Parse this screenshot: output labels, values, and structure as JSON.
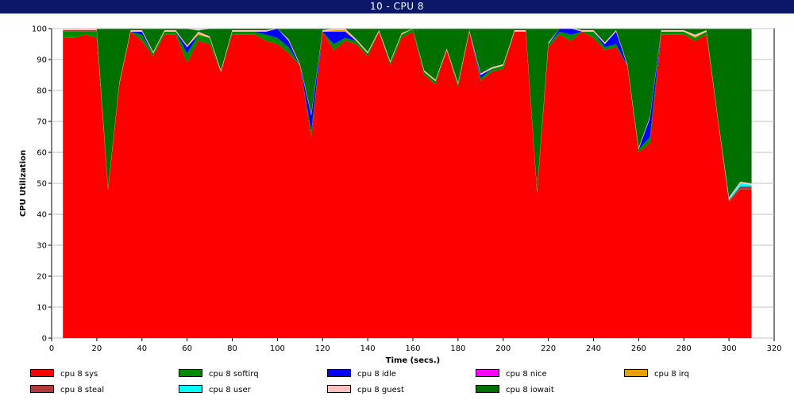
{
  "window": {
    "title": "10 - CPU 8"
  },
  "chart_data": {
    "type": "area",
    "stacked": true,
    "title": "10 - CPU 8",
    "xlabel": "Time (secs.)",
    "ylabel": "CPU Utilization",
    "xlim": [
      0,
      320
    ],
    "ylim": [
      0,
      100
    ],
    "xticks": [
      0,
      20,
      40,
      60,
      80,
      100,
      120,
      140,
      160,
      180,
      200,
      220,
      240,
      260,
      280,
      300,
      320
    ],
    "yticks": [
      0,
      10,
      20,
      30,
      40,
      50,
      60,
      70,
      80,
      90,
      100
    ],
    "grid": true,
    "legend_position": "bottom",
    "x": [
      5,
      10,
      15,
      20,
      25,
      30,
      35,
      40,
      45,
      50,
      55,
      60,
      65,
      70,
      75,
      80,
      85,
      90,
      95,
      100,
      105,
      110,
      115,
      120,
      125,
      130,
      135,
      140,
      145,
      150,
      155,
      160,
      165,
      170,
      175,
      180,
      185,
      190,
      195,
      200,
      205,
      210,
      215,
      220,
      225,
      230,
      235,
      240,
      245,
      250,
      255,
      260,
      265,
      270,
      275,
      280,
      285,
      290,
      295,
      300,
      305,
      310
    ],
    "series": [
      {
        "name": "cpu 8 sys",
        "color": "#ff0000",
        "values": [
          97,
          97,
          98,
          97,
          48,
          82,
          99,
          96,
          91,
          98,
          98,
          89,
          96,
          95,
          86,
          98,
          98,
          98,
          96,
          95,
          92,
          88,
          65,
          99,
          93,
          96,
          95,
          91,
          99,
          88,
          97,
          99,
          85,
          82,
          93,
          81,
          99,
          83,
          86,
          87,
          99,
          99,
          47,
          94,
          98,
          96,
          99,
          97,
          93,
          94,
          88,
          60,
          63,
          98,
          98,
          98,
          96,
          98,
          71,
          44,
          48,
          48
        ]
      },
      {
        "name": "cpu 8 softirq",
        "color": "#008b00",
        "values": [
          2,
          2,
          1,
          2,
          0,
          0,
          0,
          2,
          1,
          1,
          1,
          3,
          2,
          2,
          0,
          1,
          1,
          1,
          2,
          2,
          2,
          0,
          2,
          0,
          2,
          1,
          1,
          1,
          0,
          1,
          1,
          1,
          1,
          1,
          0,
          1,
          0,
          1,
          1,
          1,
          0,
          0,
          0,
          1,
          1,
          2,
          0,
          2,
          1,
          1,
          0,
          1,
          2,
          1,
          1,
          1,
          1,
          1,
          0,
          0,
          0,
          0
        ]
      },
      {
        "name": "cpu 8 idle",
        "color": "#0000ff",
        "values": [
          0,
          0,
          0,
          0,
          0,
          0,
          0,
          1,
          0,
          0,
          0,
          2,
          0,
          0,
          0,
          0,
          0,
          0,
          1,
          3,
          2,
          0,
          5,
          0,
          4,
          2,
          0,
          0,
          0,
          0,
          0,
          0,
          0,
          0,
          0,
          0,
          0,
          1,
          0,
          0,
          0,
          0,
          0,
          0,
          1,
          2,
          0,
          0,
          1,
          4,
          0,
          0,
          6,
          0,
          0,
          0,
          0,
          0,
          0,
          0,
          0,
          0
        ]
      },
      {
        "name": "cpu 8 nice",
        "color": "#ff00ff",
        "values": [
          0,
          0,
          0,
          0,
          0,
          0,
          0,
          0,
          0,
          0,
          0,
          0,
          0,
          0,
          0,
          0,
          0,
          0,
          0,
          0,
          0,
          0,
          0,
          0,
          0,
          0,
          0,
          0,
          0,
          0,
          0,
          0,
          0,
          0,
          0,
          0,
          0,
          0,
          0,
          0,
          0,
          0,
          0,
          0,
          0,
          0,
          0,
          0,
          0,
          0,
          0,
          0,
          0,
          0,
          0,
          0,
          0,
          0,
          0,
          0,
          0,
          0
        ]
      },
      {
        "name": "cpu 8 irq",
        "color": "#e8a000",
        "values": [
          0,
          0,
          0,
          0,
          0,
          0,
          0,
          0,
          0,
          0,
          0,
          0,
          0.5,
          0,
          0,
          0,
          0,
          0,
          0,
          0,
          0,
          0,
          0,
          0,
          0.5,
          0.5,
          0,
          0,
          0,
          0,
          0,
          0,
          0,
          0,
          0,
          0,
          0,
          0,
          0,
          0,
          0,
          0,
          0,
          0,
          0,
          0,
          0,
          0,
          0,
          0,
          0,
          0,
          0,
          0,
          0,
          0,
          0.5,
          0,
          0,
          0,
          0,
          0
        ]
      },
      {
        "name": "cpu 8 steal",
        "color": "#b03a3a",
        "values": [
          0.5,
          0.5,
          0.5,
          0.5,
          0,
          0,
          0,
          0,
          0,
          0,
          0,
          0,
          0,
          0,
          0,
          0,
          0,
          0,
          0,
          0,
          0,
          0,
          0,
          0,
          0,
          0,
          0,
          0,
          0,
          0,
          0,
          0,
          0,
          0,
          0,
          0,
          0,
          0,
          0,
          0,
          0,
          0,
          0,
          0,
          0,
          0,
          0,
          0,
          0,
          0,
          0,
          0,
          0,
          0,
          0,
          0,
          0,
          0,
          0,
          0.5,
          1,
          1
        ]
      },
      {
        "name": "cpu 8 user",
        "color": "#00ffff",
        "values": [
          0,
          0,
          0,
          0,
          0,
          0,
          0,
          0,
          0,
          0,
          0,
          0,
          0,
          0,
          0,
          0,
          0,
          0,
          0,
          0,
          0,
          0,
          0,
          0,
          0,
          0,
          0,
          0,
          0,
          0,
          0,
          0,
          0,
          0,
          0,
          0,
          0,
          0,
          0,
          0,
          0,
          0,
          0,
          0,
          0,
          0,
          0,
          0,
          0,
          0,
          0,
          0,
          0,
          0,
          0,
          0,
          0,
          0,
          0,
          0.5,
          1,
          0.5
        ]
      },
      {
        "name": "cpu 8 guest",
        "color": "#ffc0c0",
        "values": [
          0.5,
          0.5,
          0.5,
          0.5,
          0.5,
          0.5,
          0.5,
          0.5,
          0.5,
          0.5,
          0.5,
          0.5,
          0.5,
          0.5,
          0.5,
          0.5,
          0.5,
          0.5,
          0.5,
          0.5,
          0.5,
          0.5,
          0.5,
          0.5,
          0.5,
          0.5,
          0.5,
          0.5,
          0.5,
          0.5,
          0.5,
          0.5,
          0.5,
          0.5,
          0.5,
          0.5,
          0.5,
          0.5,
          0.5,
          0.5,
          0.5,
          0.5,
          0.5,
          0.5,
          0.5,
          0.5,
          0.5,
          0.5,
          0.5,
          0.5,
          0.5,
          0.5,
          0.5,
          0.5,
          0.5,
          0.5,
          0.5,
          0.5,
          0.5,
          0.5,
          0.5,
          0.5
        ]
      },
      {
        "name": "cpu 8 iowait",
        "color": "#007000",
        "values": [
          0,
          0,
          0,
          0,
          51.5,
          17.5,
          0.5,
          0.5,
          7.5,
          0.5,
          0.5,
          5.5,
          0.5,
          2.5,
          13.5,
          0.5,
          0.5,
          0.5,
          0.5,
          0,
          3.5,
          11.5,
          27.5,
          0.5,
          0,
          0,
          3.5,
          7.5,
          0.5,
          10.5,
          1.5,
          0,
          13.5,
          16.5,
          6.5,
          17.5,
          0.5,
          14.5,
          12.5,
          11.5,
          0.5,
          0.5,
          52.5,
          4.5,
          0,
          0,
          0.5,
          0.5,
          4.5,
          0.5,
          11.5,
          38.5,
          28.5,
          0.5,
          0.5,
          0.5,
          2,
          0.5,
          28.5,
          54.5,
          49.5,
          50
        ]
      }
    ]
  }
}
